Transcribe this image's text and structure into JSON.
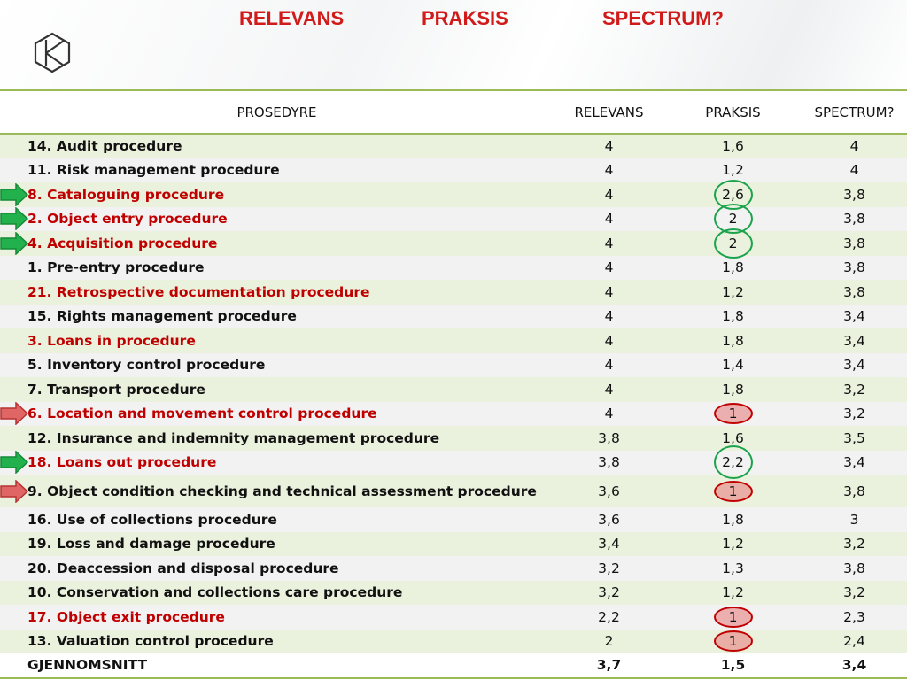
{
  "header": {
    "words": [
      "RELEVANS",
      "PRAKSIS",
      "SPECTRUM?"
    ]
  },
  "table": {
    "columns": [
      "PROSEDYRE",
      "RELEVANS",
      "PRAKSIS",
      "SPECTRUM?"
    ],
    "rows": [
      {
        "name": "14. Audit procedure",
        "relevans": "4",
        "praksis": "1,6",
        "spectrum": "4",
        "highlight": false,
        "praksis_mark": "none",
        "arrow": "none"
      },
      {
        "name": "11. Risk management procedure",
        "relevans": "4",
        "praksis": "1,2",
        "spectrum": "4",
        "highlight": false,
        "praksis_mark": "none",
        "arrow": "none"
      },
      {
        "name": "8. Cataloguing procedure",
        "relevans": "4",
        "praksis": "2,6",
        "spectrum": "3,8",
        "highlight": true,
        "praksis_mark": "green",
        "arrow": "green"
      },
      {
        "name": "2. Object entry procedure",
        "relevans": "4",
        "praksis": "2",
        "spectrum": "3,8",
        "highlight": true,
        "praksis_mark": "green",
        "arrow": "green"
      },
      {
        "name": "4. Acquisition procedure",
        "relevans": "4",
        "praksis": "2",
        "spectrum": "3,8",
        "highlight": true,
        "praksis_mark": "green",
        "arrow": "green"
      },
      {
        "name": "1. Pre-entry procedure",
        "relevans": "4",
        "praksis": "1,8",
        "spectrum": "3,8",
        "highlight": false,
        "praksis_mark": "none",
        "arrow": "none"
      },
      {
        "name": "21. Retrospective documentation procedure",
        "relevans": "4",
        "praksis": "1,2",
        "spectrum": "3,8",
        "highlight": true,
        "praksis_mark": "none",
        "arrow": "none"
      },
      {
        "name": "15. Rights management procedure",
        "relevans": "4",
        "praksis": "1,8",
        "spectrum": "3,4",
        "highlight": false,
        "praksis_mark": "none",
        "arrow": "none"
      },
      {
        "name": "3. Loans in procedure",
        "relevans": "4",
        "praksis": "1,8",
        "spectrum": "3,4",
        "highlight": true,
        "praksis_mark": "none",
        "arrow": "none"
      },
      {
        "name": "5. Inventory control procedure",
        "relevans": "4",
        "praksis": "1,4",
        "spectrum": "3,4",
        "highlight": false,
        "praksis_mark": "none",
        "arrow": "none"
      },
      {
        "name": "7. Transport procedure",
        "relevans": "4",
        "praksis": "1,8",
        "spectrum": "3,2",
        "highlight": false,
        "praksis_mark": "none",
        "arrow": "none"
      },
      {
        "name": "6. Location and movement control procedure",
        "relevans": "4",
        "praksis": "1",
        "spectrum": "3,2",
        "highlight": true,
        "praksis_mark": "red",
        "arrow": "red"
      },
      {
        "name": "12. Insurance and indemnity management procedure",
        "relevans": "3,8",
        "praksis": "1,6",
        "spectrum": "3,5",
        "highlight": false,
        "praksis_mark": "none",
        "arrow": "none"
      },
      {
        "name": "18. Loans out procedure",
        "relevans": "3,8",
        "praksis": "2,2",
        "spectrum": "3,4",
        "highlight": true,
        "praksis_mark": "green",
        "arrow": "green"
      },
      {
        "name": "9. Object condition checking and technical assessment procedure",
        "relevans": "3,6",
        "praksis": "1",
        "spectrum": "3,8",
        "highlight": false,
        "praksis_mark": "red",
        "arrow": "red"
      },
      {
        "name": "16. Use of collections procedure",
        "relevans": "3,6",
        "praksis": "1,8",
        "spectrum": "3",
        "highlight": false,
        "praksis_mark": "none",
        "arrow": "none"
      },
      {
        "name": "19. Loss and damage procedure",
        "relevans": "3,4",
        "praksis": "1,2",
        "spectrum": "3,2",
        "highlight": false,
        "praksis_mark": "none",
        "arrow": "none"
      },
      {
        "name": "20. Deaccession and disposal procedure",
        "relevans": "3,2",
        "praksis": "1,3",
        "spectrum": "3,8",
        "highlight": false,
        "praksis_mark": "none",
        "arrow": "none"
      },
      {
        "name": "10. Conservation and collections care procedure",
        "relevans": "3,2",
        "praksis": "1,2",
        "spectrum": "3,2",
        "highlight": false,
        "praksis_mark": "none",
        "arrow": "none"
      },
      {
        "name": "17. Object exit procedure",
        "relevans": "2,2",
        "praksis": "1",
        "spectrum": "2,3",
        "highlight": true,
        "praksis_mark": "red",
        "arrow": "none"
      },
      {
        "name": "13. Valuation control procedure",
        "relevans": "2",
        "praksis": "1",
        "spectrum": "2,4",
        "highlight": false,
        "praksis_mark": "red",
        "arrow": "none"
      }
    ],
    "average": {
      "name": "GJENNOMSNITT",
      "relevans": "3,7",
      "praksis": "1,5",
      "spectrum": "3,4"
    }
  },
  "colors": {
    "headline_red": "#d11a1a",
    "highlight_red": "#c00000",
    "row_green": "#eaf1dd",
    "row_grey": "#f2f2f2",
    "rule_green": "#9bbb59",
    "mark_green": "#1aa34a"
  },
  "icons": {
    "logo": "kulturit-logo-icon",
    "arrow": "right-arrow-icon"
  }
}
